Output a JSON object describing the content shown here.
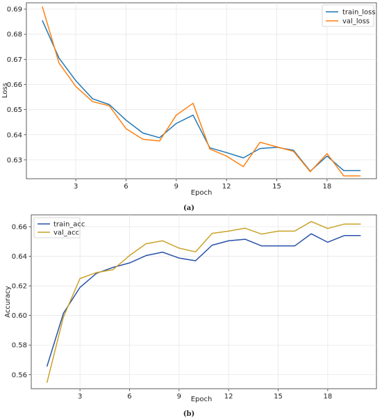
{
  "chart_data": [
    {
      "type": "line",
      "caption": "(a)",
      "xlabel": "Epoch",
      "ylabel": "Loss",
      "xticks": [
        3,
        6,
        9,
        12,
        15,
        18
      ],
      "yticks": [
        "0.63",
        "0.64",
        "0.65",
        "0.66",
        "0.67",
        "0.68",
        "0.69"
      ],
      "xlim": [
        0.05,
        20.95
      ],
      "ylim": [
        0.6225,
        0.6925
      ],
      "grid": true,
      "legend_position": "top-right",
      "x": [
        1,
        2,
        3,
        4,
        5,
        6,
        7,
        8,
        9,
        10,
        11,
        12,
        13,
        14,
        15,
        16,
        17,
        18,
        19,
        20
      ],
      "series": [
        {
          "name": "train_loss",
          "color": "#1f77b4",
          "values": [
            0.6855,
            0.6705,
            0.6615,
            0.6543,
            0.652,
            0.6458,
            0.6407,
            0.6388,
            0.6445,
            0.6478,
            0.6348,
            0.6329,
            0.6308,
            0.6345,
            0.635,
            0.6338,
            0.6255,
            0.6315,
            0.6257,
            0.6257
          ]
        },
        {
          "name": "val_loss",
          "color": "#ff7f0e",
          "values": [
            0.691,
            0.6685,
            0.6592,
            0.6532,
            0.6515,
            0.6424,
            0.6382,
            0.6375,
            0.6478,
            0.6525,
            0.6343,
            0.6315,
            0.6273,
            0.637,
            0.6352,
            0.6334,
            0.6253,
            0.6325,
            0.6236,
            0.6236
          ]
        }
      ]
    },
    {
      "type": "line",
      "caption": "(b)",
      "xlabel": "Epoch",
      "ylabel": "Accuracy",
      "xticks": [
        3,
        6,
        9,
        12,
        15,
        18
      ],
      "yticks": [
        "0.56",
        "0.58",
        "0.60",
        "0.62",
        "0.64",
        "0.66"
      ],
      "xlim": [
        0.05,
        20.95
      ],
      "ylim": [
        0.5505,
        0.668
      ],
      "grid": true,
      "legend_position": "top-left",
      "x": [
        1,
        2,
        3,
        4,
        5,
        6,
        7,
        8,
        9,
        10,
        11,
        12,
        13,
        14,
        15,
        16,
        17,
        18,
        19,
        20
      ],
      "series": [
        {
          "name": "train_acc",
          "color": "#2850a8",
          "values": [
            0.5655,
            0.6015,
            0.619,
            0.6285,
            0.6325,
            0.6355,
            0.6405,
            0.6428,
            0.6388,
            0.637,
            0.6475,
            0.6505,
            0.6515,
            0.647,
            0.647,
            0.647,
            0.6552,
            0.6495,
            0.654,
            0.654
          ]
        },
        {
          "name": "val_acc",
          "color": "#c9a227",
          "values": [
            0.5545,
            0.599,
            0.625,
            0.629,
            0.631,
            0.6405,
            0.6485,
            0.6505,
            0.6455,
            0.643,
            0.6555,
            0.657,
            0.659,
            0.655,
            0.657,
            0.657,
            0.6635,
            0.6588,
            0.6618,
            0.6618
          ]
        }
      ]
    }
  ]
}
